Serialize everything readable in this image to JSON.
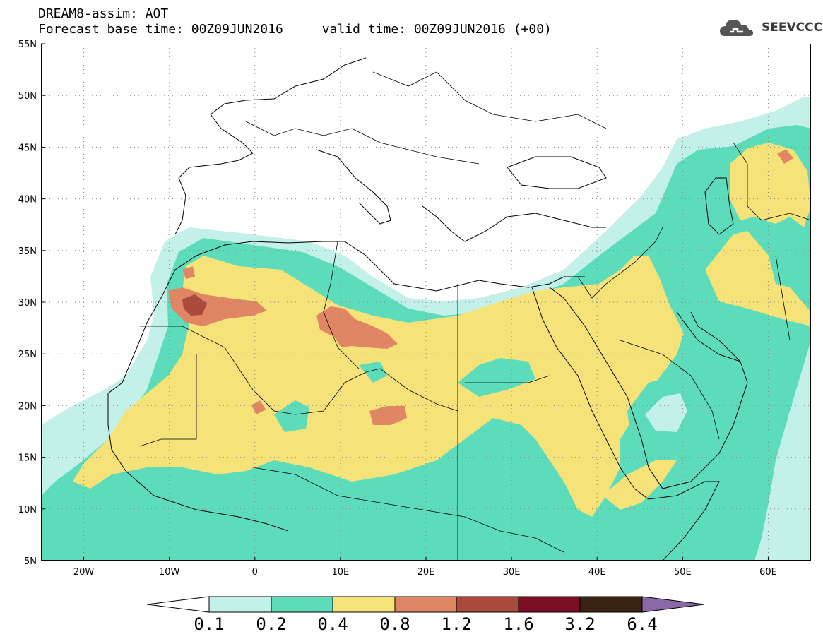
{
  "header": {
    "title_line1": "DREAM8-assim: AOT",
    "base_time": "Forecast base time: 00Z09JUN2016",
    "valid_time": "valid time: 00Z09JUN2016 (+00)"
  },
  "logo": {
    "text": "SEEVCCC",
    "icon": "cloud-logo-icon"
  },
  "map": {
    "lon_range": [
      -25,
      65
    ],
    "lat_range": [
      5,
      55
    ],
    "lat_labels": [
      "55N",
      "50N",
      "45N",
      "40N",
      "35N",
      "30N",
      "25N",
      "20N",
      "15N",
      "10N",
      "5N"
    ],
    "lon_labels": [
      "20W",
      "10W",
      "0",
      "10E",
      "20E",
      "30E",
      "40E",
      "50E",
      "60E"
    ],
    "grid": "dotted"
  },
  "colorbar": {
    "colors": {
      "under": "#ffffff",
      "c01_02": "#c4f0ea",
      "c02_04": "#5ddcbc",
      "c04_08": "#f5e278",
      "c08_12": "#e08665",
      "c12_16": "#a94a3d",
      "c16_32": "#7c0e25",
      "c32_64": "#3a2312",
      "over": "#8a68a8"
    },
    "labels": [
      "0.1",
      "0.2",
      "0.4",
      "0.8",
      "1.2",
      "1.6",
      "3.2",
      "6.4"
    ]
  }
}
